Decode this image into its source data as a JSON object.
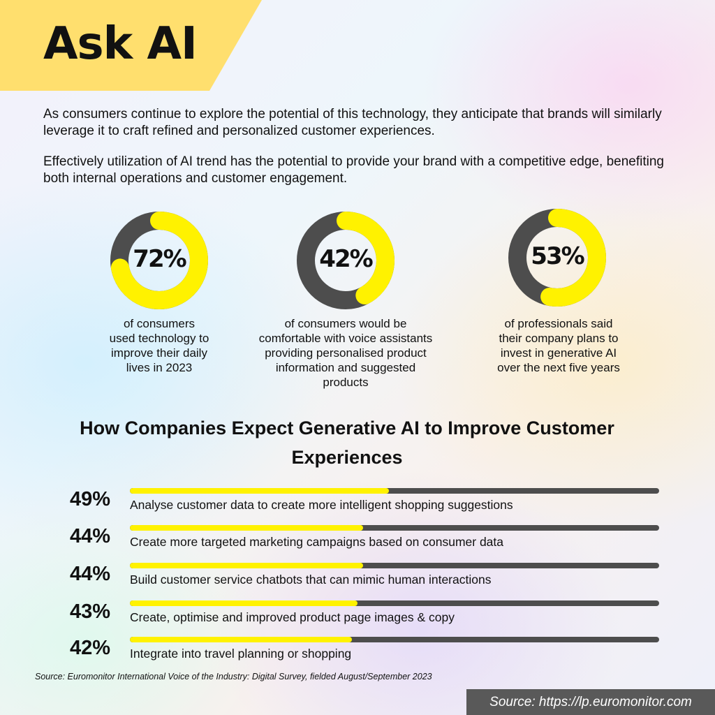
{
  "header": {
    "title": "Ask AI"
  },
  "intro": {
    "paragraph1": "As consumers continue to explore the potential of this technology, they anticipate that brands will similarly leverage it to craft refined and personalized customer experiences.",
    "paragraph2": "Effectively utilization of AI trend has the potential to provide your brand with a competitive edge, benefiting both internal operations and customer engagement."
  },
  "colors": {
    "accent": "#fff200",
    "track": "#4d4d4d",
    "banner": "#ffdf6e"
  },
  "section_title": "How Companies Expect Generative AI to Improve Customer Experiences",
  "source_note": "Source: Euromonitor International Voice of the Industry: Digital Survey, fielded August/September 2023",
  "source_box": "Source: https://lp.euromonitor.com",
  "chart_data": [
    {
      "type": "pie",
      "style": "donut",
      "charts": [
        {
          "value": 72,
          "label": "72%",
          "caption": [
            "of consumers",
            "used technology to",
            "improve their daily",
            "lives in 2023"
          ]
        },
        {
          "value": 42,
          "label": "42%",
          "caption": [
            "of consumers would be",
            "comfortable with voice assistants",
            "providing personalised product",
            "information and suggested",
            "products"
          ]
        },
        {
          "value": 53,
          "label": "53%",
          "caption": [
            "of professionals said",
            "their company plans to",
            "invest in generative AI",
            "over the next five years"
          ]
        }
      ]
    },
    {
      "type": "bar",
      "orientation": "horizontal",
      "title": "How Companies Expect Generative AI to Improve Customer Experiences",
      "ylim": [
        0,
        100
      ],
      "categories": [
        "Analyse customer data to create more intelligent shopping suggestions",
        "Create more targeted marketing campaigns based on consumer data",
        "Build customer service chatbots that can mimic human interactions",
        "Create, optimise and improved product page images & copy",
        "Integrate into travel planning or shopping"
      ],
      "values": [
        49,
        44,
        44,
        43,
        42
      ],
      "value_labels": [
        "49%",
        "44%",
        "44%",
        "43%",
        "42%"
      ]
    }
  ]
}
